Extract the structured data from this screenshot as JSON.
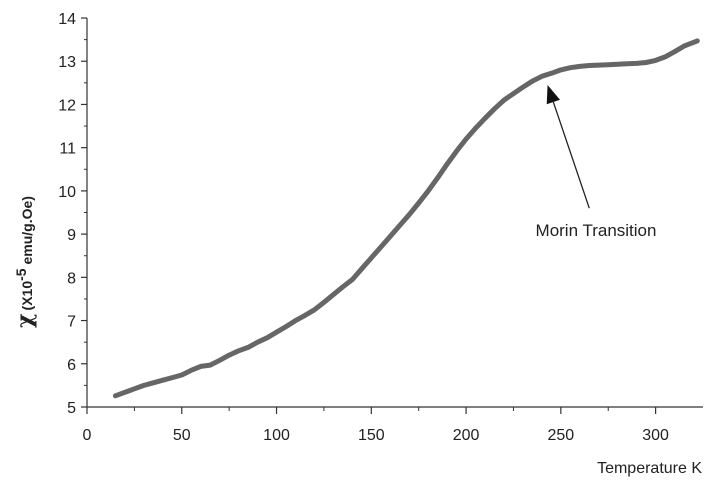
{
  "chart_data": {
    "type": "line",
    "title": "",
    "xlabel": "Temperature K",
    "ylabel": {
      "symbol": "χ",
      "prefix": "(X10",
      "exponent": "-5",
      "suffix": " emu/g.Oe)"
    },
    "xlim": [
      0,
      325
    ],
    "ylim": [
      5,
      14
    ],
    "x_ticks": [
      0,
      50,
      100,
      150,
      200,
      250,
      300
    ],
    "y_ticks": [
      5,
      6,
      7,
      8,
      9,
      10,
      11,
      12,
      13,
      14
    ],
    "series_color": "#666666",
    "annotation": {
      "text": "Morin Transition",
      "arrow_to": [
        243,
        12.45
      ],
      "arrow_from": [
        265,
        9.6
      ]
    },
    "series": [
      {
        "x": [
          15,
          20,
          25,
          30,
          35,
          40,
          45,
          50,
          55,
          60,
          65,
          70,
          75,
          80,
          85,
          90,
          95,
          100,
          105,
          110,
          115,
          120,
          125,
          130,
          135,
          140,
          145,
          150,
          155,
          160,
          165,
          170,
          175,
          180,
          185,
          190,
          195,
          200,
          205,
          210,
          215,
          220,
          225,
          230,
          235,
          240,
          245,
          250,
          255,
          260,
          265,
          270,
          275,
          280,
          285,
          290,
          295,
          300,
          305,
          310,
          315,
          322
        ],
        "y": [
          5.26,
          5.34,
          5.42,
          5.5,
          5.56,
          5.62,
          5.68,
          5.74,
          5.85,
          5.94,
          5.97,
          6.08,
          6.2,
          6.3,
          6.38,
          6.5,
          6.6,
          6.73,
          6.86,
          7.0,
          7.12,
          7.25,
          7.42,
          7.6,
          7.78,
          7.95,
          8.2,
          8.45,
          8.7,
          8.95,
          9.2,
          9.45,
          9.72,
          10.0,
          10.3,
          10.62,
          10.92,
          11.2,
          11.45,
          11.68,
          11.9,
          12.1,
          12.25,
          12.4,
          12.54,
          12.65,
          12.72,
          12.8,
          12.85,
          12.88,
          12.9,
          12.91,
          12.92,
          12.93,
          12.94,
          12.95,
          12.97,
          13.02,
          13.1,
          13.22,
          13.35,
          13.47
        ]
      }
    ]
  }
}
